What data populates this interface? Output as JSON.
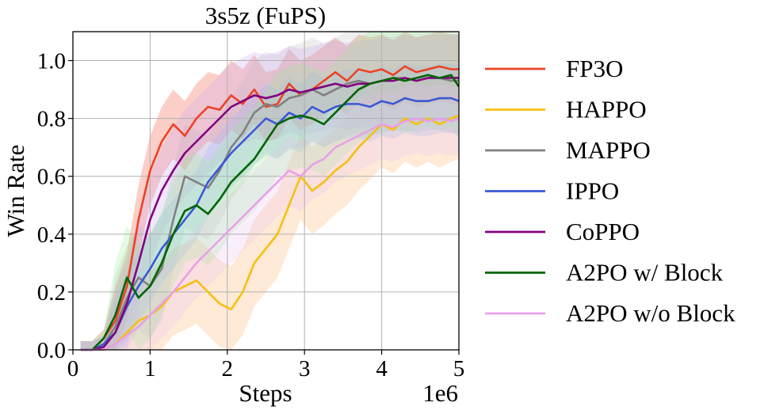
{
  "chart_data": {
    "type": "line",
    "title": "3s5z (FuPS)",
    "xlabel": "Steps",
    "ylabel": "Win Rate",
    "x_offset_label": "1e6",
    "xlim": [
      0,
      5
    ],
    "ylim": [
      0,
      1.1
    ],
    "x_ticks": [
      0,
      1,
      2,
      3,
      4,
      5
    ],
    "x_tick_labels": [
      "0",
      "1",
      "2",
      "3",
      "4",
      "5"
    ],
    "y_ticks": [
      0,
      0.2,
      0.4,
      0.6,
      0.8,
      1.0
    ],
    "y_tick_labels": [
      "0.0",
      "0.2",
      "0.4",
      "0.6",
      "0.8",
      "1.0"
    ],
    "grid": true,
    "legend_position": "outside-right",
    "x": [
      0.1,
      0.25,
      0.4,
      0.55,
      0.7,
      0.85,
      1.0,
      1.15,
      1.3,
      1.45,
      1.6,
      1.75,
      1.9,
      2.05,
      2.2,
      2.35,
      2.5,
      2.65,
      2.8,
      2.95,
      3.1,
      3.25,
      3.4,
      3.55,
      3.7,
      3.85,
      4.0,
      4.15,
      4.3,
      4.45,
      4.6,
      4.75,
      4.9,
      5.0
    ],
    "series": [
      {
        "name": "FP3O",
        "color": "#ee4125",
        "shade": "#ee4125",
        "values": [
          0.0,
          0.0,
          0.04,
          0.1,
          0.22,
          0.45,
          0.62,
          0.72,
          0.78,
          0.74,
          0.8,
          0.84,
          0.83,
          0.88,
          0.85,
          0.9,
          0.84,
          0.85,
          0.92,
          0.88,
          0.9,
          0.93,
          0.96,
          0.93,
          0.97,
          0.96,
          0.97,
          0.95,
          0.98,
          0.96,
          0.97,
          0.98,
          0.97,
          0.97
        ]
      },
      {
        "name": "HAPPO",
        "color": "#f5c010",
        "shade": "#ffad60",
        "values": [
          0.0,
          0.0,
          0.0,
          0.02,
          0.06,
          0.1,
          0.12,
          0.15,
          0.2,
          0.22,
          0.24,
          0.2,
          0.16,
          0.14,
          0.2,
          0.3,
          0.35,
          0.4,
          0.5,
          0.6,
          0.55,
          0.58,
          0.62,
          0.65,
          0.7,
          0.74,
          0.78,
          0.76,
          0.8,
          0.78,
          0.8,
          0.78,
          0.8,
          0.81
        ]
      },
      {
        "name": "MAPPO",
        "color": "#808080",
        "shade": "#bdbdbd",
        "values": [
          0.0,
          0.0,
          0.02,
          0.08,
          0.18,
          0.25,
          0.22,
          0.28,
          0.45,
          0.6,
          0.58,
          0.56,
          0.62,
          0.7,
          0.75,
          0.82,
          0.85,
          0.84,
          0.87,
          0.88,
          0.9,
          0.88,
          0.9,
          0.92,
          0.93,
          0.92,
          0.93,
          0.94,
          0.94,
          0.93,
          0.94,
          0.94,
          0.93,
          0.93
        ]
      },
      {
        "name": "IPPO",
        "color": "#3b58d6",
        "shade": "#86b2ff",
        "values": [
          0.0,
          0.0,
          0.02,
          0.06,
          0.15,
          0.22,
          0.28,
          0.35,
          0.4,
          0.45,
          0.5,
          0.58,
          0.63,
          0.68,
          0.72,
          0.76,
          0.8,
          0.78,
          0.82,
          0.8,
          0.84,
          0.82,
          0.84,
          0.85,
          0.85,
          0.84,
          0.86,
          0.85,
          0.87,
          0.86,
          0.86,
          0.87,
          0.87,
          0.86
        ]
      },
      {
        "name": "CoPPO",
        "color": "#800080",
        "shade": "#c8a0f0",
        "values": [
          0.0,
          0.0,
          0.01,
          0.06,
          0.16,
          0.3,
          0.45,
          0.55,
          0.62,
          0.68,
          0.72,
          0.76,
          0.8,
          0.84,
          0.86,
          0.88,
          0.87,
          0.88,
          0.9,
          0.89,
          0.9,
          0.91,
          0.92,
          0.91,
          0.92,
          0.92,
          0.93,
          0.93,
          0.94,
          0.93,
          0.94,
          0.94,
          0.94,
          0.94
        ]
      },
      {
        "name": "A2PO w/ Block",
        "color": "#006400",
        "shade": "#90ee90",
        "values": [
          0.0,
          0.0,
          0.04,
          0.12,
          0.25,
          0.18,
          0.22,
          0.3,
          0.4,
          0.48,
          0.5,
          0.47,
          0.52,
          0.58,
          0.62,
          0.66,
          0.72,
          0.78,
          0.8,
          0.81,
          0.8,
          0.78,
          0.82,
          0.86,
          0.9,
          0.92,
          0.93,
          0.94,
          0.93,
          0.94,
          0.95,
          0.94,
          0.95,
          0.91
        ]
      },
      {
        "name": "A2PO w/o Block",
        "color": "#e8a0e8",
        "shade": "#e8c0f0",
        "values": [
          0.0,
          0.0,
          0.0,
          0.02,
          0.05,
          0.08,
          0.12,
          0.16,
          0.2,
          0.25,
          0.3,
          0.34,
          0.38,
          0.42,
          0.46,
          0.5,
          0.54,
          0.58,
          0.62,
          0.6,
          0.64,
          0.66,
          0.7,
          0.72,
          0.74,
          0.76,
          0.78,
          0.77,
          0.79,
          0.8,
          0.79,
          0.8,
          0.79,
          0.8
        ]
      }
    ]
  }
}
